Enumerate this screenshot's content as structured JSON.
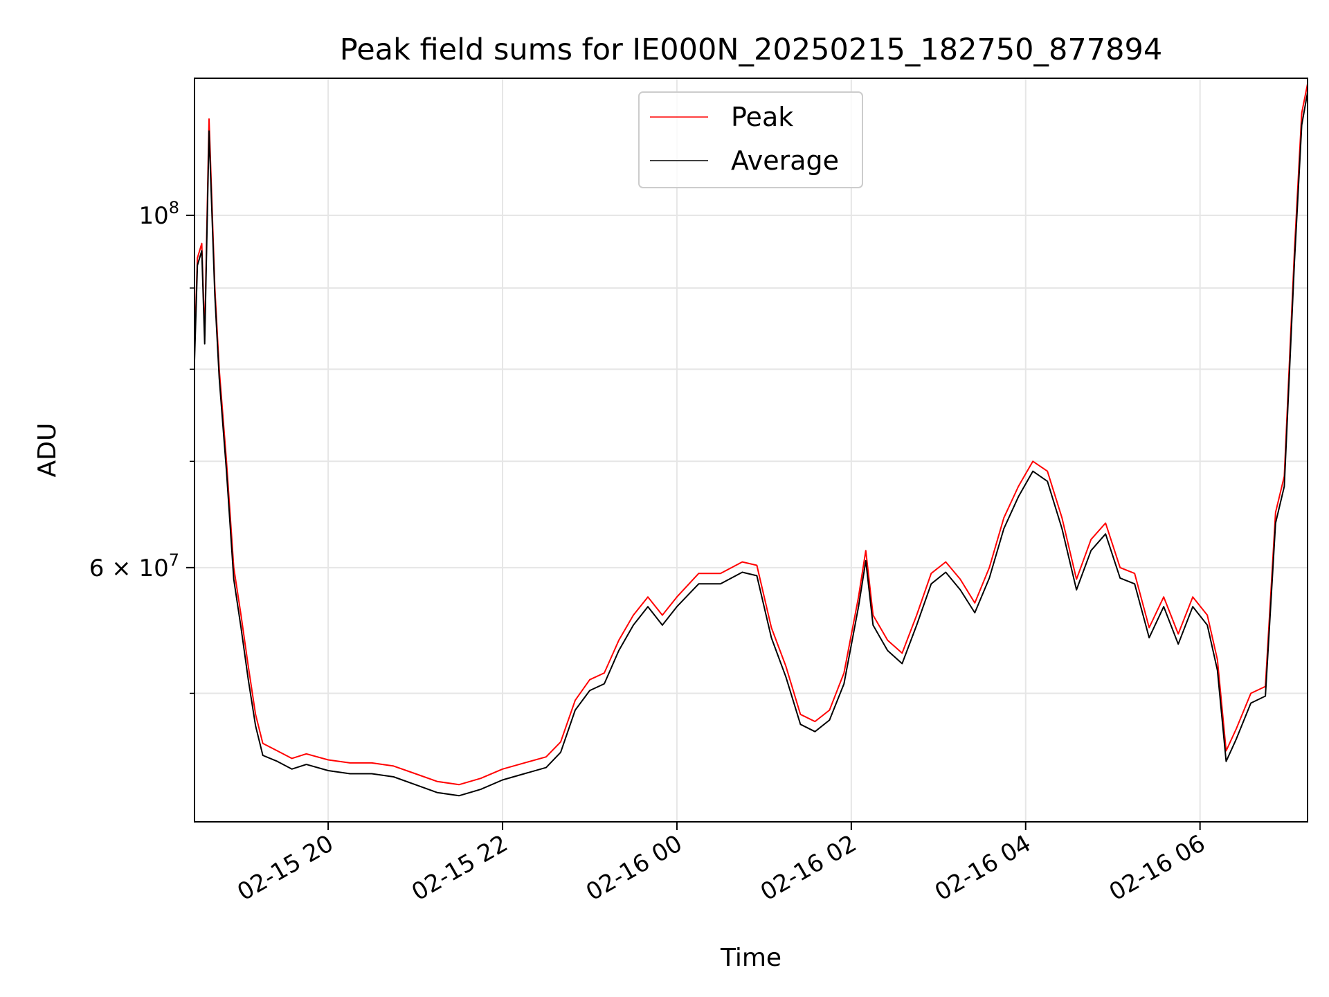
{
  "chart_data": {
    "type": "line",
    "title": "Peak field sums for IE000N_20250215_182750_877894",
    "xlabel": "Time",
    "ylabel": "ADU",
    "yscale": "log",
    "grid": true,
    "legend_position": "upper-center",
    "xlim": [
      "2025-02-15 18:28",
      "2025-02-16 07:14"
    ],
    "ylim": [
      41500000,
      122000000
    ],
    "x_ticks": [
      {
        "t": "2025-02-15 20:00",
        "label": "02-15 20"
      },
      {
        "t": "2025-02-15 22:00",
        "label": "02-15 22"
      },
      {
        "t": "2025-02-16 00:00",
        "label": "02-16 00"
      },
      {
        "t": "2025-02-16 02:00",
        "label": "02-16 02"
      },
      {
        "t": "2025-02-16 04:00",
        "label": "02-16 04"
      },
      {
        "t": "2025-02-16 06:00",
        "label": "02-16 06"
      }
    ],
    "y_major_ticks": [
      {
        "value": 100000000,
        "label_base": "10",
        "label_exp": "8"
      },
      {
        "value": 60000000,
        "label_base": "6 × 10",
        "label_exp": "7"
      }
    ],
    "y_minor_ticks": [
      50000000,
      70000000,
      80000000,
      90000000
    ],
    "series": [
      {
        "name": "Peak",
        "color": "#ff0000",
        "points": [
          [
            "2025-02-15 18:28",
            82000000
          ],
          [
            "2025-02-15 18:30",
            94000000
          ],
          [
            "2025-02-15 18:33",
            96000000
          ],
          [
            "2025-02-15 18:35",
            84000000
          ],
          [
            "2025-02-15 18:38",
            115000000
          ],
          [
            "2025-02-15 18:42",
            90000000
          ],
          [
            "2025-02-15 18:45",
            80000000
          ],
          [
            "2025-02-15 18:50",
            70000000
          ],
          [
            "2025-02-15 18:55",
            60000000
          ],
          [
            "2025-02-15 19:00",
            56000000
          ],
          [
            "2025-02-15 19:05",
            52000000
          ],
          [
            "2025-02-15 19:10",
            48500000
          ],
          [
            "2025-02-15 19:15",
            46500000
          ],
          [
            "2025-02-15 19:25",
            46000000
          ],
          [
            "2025-02-15 19:35",
            45500000
          ],
          [
            "2025-02-15 19:45",
            45800000
          ],
          [
            "2025-02-15 20:00",
            45400000
          ],
          [
            "2025-02-15 20:15",
            45200000
          ],
          [
            "2025-02-15 20:30",
            45200000
          ],
          [
            "2025-02-15 20:45",
            45000000
          ],
          [
            "2025-02-15 21:00",
            44500000
          ],
          [
            "2025-02-15 21:15",
            44000000
          ],
          [
            "2025-02-15 21:30",
            43800000
          ],
          [
            "2025-02-15 21:45",
            44200000
          ],
          [
            "2025-02-15 22:00",
            44800000
          ],
          [
            "2025-02-15 22:15",
            45200000
          ],
          [
            "2025-02-15 22:30",
            45600000
          ],
          [
            "2025-02-15 22:40",
            46600000
          ],
          [
            "2025-02-15 22:50",
            49500000
          ],
          [
            "2025-02-15 23:00",
            51000000
          ],
          [
            "2025-02-15 23:10",
            51500000
          ],
          [
            "2025-02-15 23:20",
            54000000
          ],
          [
            "2025-02-15 23:30",
            56000000
          ],
          [
            "2025-02-15 23:40",
            57500000
          ],
          [
            "2025-02-15 23:50",
            56000000
          ],
          [
            "2025-02-16 00:00",
            57500000
          ],
          [
            "2025-02-16 00:15",
            59500000
          ],
          [
            "2025-02-16 00:30",
            59500000
          ],
          [
            "2025-02-16 00:45",
            60500000
          ],
          [
            "2025-02-16 00:55",
            60200000
          ],
          [
            "2025-02-16 01:05",
            55000000
          ],
          [
            "2025-02-16 01:15",
            52000000
          ],
          [
            "2025-02-16 01:25",
            48500000
          ],
          [
            "2025-02-16 01:35",
            48000000
          ],
          [
            "2025-02-16 01:45",
            48800000
          ],
          [
            "2025-02-16 01:55",
            51500000
          ],
          [
            "2025-02-16 02:05",
            57500000
          ],
          [
            "2025-02-16 02:10",
            61500000
          ],
          [
            "2025-02-16 02:15",
            56000000
          ],
          [
            "2025-02-16 02:25",
            54000000
          ],
          [
            "2025-02-16 02:35",
            53000000
          ],
          [
            "2025-02-16 02:45",
            56000000
          ],
          [
            "2025-02-16 02:55",
            59500000
          ],
          [
            "2025-02-16 03:05",
            60500000
          ],
          [
            "2025-02-16 03:15",
            59000000
          ],
          [
            "2025-02-16 03:25",
            57000000
          ],
          [
            "2025-02-16 03:35",
            60000000
          ],
          [
            "2025-02-16 03:45",
            64500000
          ],
          [
            "2025-02-16 03:55",
            67500000
          ],
          [
            "2025-02-16 04:05",
            70000000
          ],
          [
            "2025-02-16 04:15",
            69000000
          ],
          [
            "2025-02-16 04:25",
            64500000
          ],
          [
            "2025-02-16 04:35",
            59000000
          ],
          [
            "2025-02-16 04:45",
            62500000
          ],
          [
            "2025-02-16 04:55",
            64000000
          ],
          [
            "2025-02-16 05:05",
            60000000
          ],
          [
            "2025-02-16 05:15",
            59500000
          ],
          [
            "2025-02-16 05:25",
            55000000
          ],
          [
            "2025-02-16 05:35",
            57500000
          ],
          [
            "2025-02-16 05:45",
            54500000
          ],
          [
            "2025-02-16 05:55",
            57500000
          ],
          [
            "2025-02-16 06:05",
            56000000
          ],
          [
            "2025-02-16 06:12",
            52500000
          ],
          [
            "2025-02-16 06:18",
            46000000
          ],
          [
            "2025-02-16 06:25",
            47500000
          ],
          [
            "2025-02-16 06:35",
            50000000
          ],
          [
            "2025-02-16 06:45",
            50500000
          ],
          [
            "2025-02-16 06:52",
            65000000
          ],
          [
            "2025-02-16 06:58",
            68500000
          ],
          [
            "2025-02-16 07:05",
            95000000
          ],
          [
            "2025-02-16 07:10",
            116000000
          ],
          [
            "2025-02-16 07:14",
            121000000
          ]
        ]
      },
      {
        "name": "Average",
        "color": "#000000",
        "points": [
          [
            "2025-02-15 18:28",
            81000000
          ],
          [
            "2025-02-15 18:30",
            93000000
          ],
          [
            "2025-02-15 18:33",
            95000000
          ],
          [
            "2025-02-15 18:35",
            83000000
          ],
          [
            "2025-02-15 18:38",
            113000000
          ],
          [
            "2025-02-15 18:42",
            89000000
          ],
          [
            "2025-02-15 18:45",
            79000000
          ],
          [
            "2025-02-15 18:50",
            69000000
          ],
          [
            "2025-02-15 18:55",
            59000000
          ],
          [
            "2025-02-15 19:00",
            55000000
          ],
          [
            "2025-02-15 19:05",
            51000000
          ],
          [
            "2025-02-15 19:10",
            47700000
          ],
          [
            "2025-02-15 19:15",
            45700000
          ],
          [
            "2025-02-15 19:25",
            45300000
          ],
          [
            "2025-02-15 19:35",
            44800000
          ],
          [
            "2025-02-15 19:45",
            45100000
          ],
          [
            "2025-02-15 20:00",
            44700000
          ],
          [
            "2025-02-15 20:15",
            44500000
          ],
          [
            "2025-02-15 20:30",
            44500000
          ],
          [
            "2025-02-15 20:45",
            44300000
          ],
          [
            "2025-02-15 21:00",
            43800000
          ],
          [
            "2025-02-15 21:15",
            43300000
          ],
          [
            "2025-02-15 21:30",
            43100000
          ],
          [
            "2025-02-15 21:45",
            43500000
          ],
          [
            "2025-02-15 22:00",
            44100000
          ],
          [
            "2025-02-15 22:15",
            44500000
          ],
          [
            "2025-02-15 22:30",
            44900000
          ],
          [
            "2025-02-15 22:40",
            45900000
          ],
          [
            "2025-02-15 22:50",
            48800000
          ],
          [
            "2025-02-15 23:00",
            50200000
          ],
          [
            "2025-02-15 23:10",
            50700000
          ],
          [
            "2025-02-15 23:20",
            53200000
          ],
          [
            "2025-02-15 23:30",
            55200000
          ],
          [
            "2025-02-15 23:40",
            56700000
          ],
          [
            "2025-02-15 23:50",
            55200000
          ],
          [
            "2025-02-16 00:00",
            56700000
          ],
          [
            "2025-02-16 00:15",
            58600000
          ],
          [
            "2025-02-16 00:30",
            58600000
          ],
          [
            "2025-02-16 00:45",
            59600000
          ],
          [
            "2025-02-16 00:55",
            59300000
          ],
          [
            "2025-02-16 01:05",
            54200000
          ],
          [
            "2025-02-16 01:15",
            51200000
          ],
          [
            "2025-02-16 01:25",
            47800000
          ],
          [
            "2025-02-16 01:35",
            47300000
          ],
          [
            "2025-02-16 01:45",
            48100000
          ],
          [
            "2025-02-16 01:55",
            50700000
          ],
          [
            "2025-02-16 02:05",
            56700000
          ],
          [
            "2025-02-16 02:10",
            60600000
          ],
          [
            "2025-02-16 02:15",
            55200000
          ],
          [
            "2025-02-16 02:25",
            53200000
          ],
          [
            "2025-02-16 02:35",
            52200000
          ],
          [
            "2025-02-16 02:45",
            55200000
          ],
          [
            "2025-02-16 02:55",
            58600000
          ],
          [
            "2025-02-16 03:05",
            59600000
          ],
          [
            "2025-02-16 03:15",
            58100000
          ],
          [
            "2025-02-16 03:25",
            56200000
          ],
          [
            "2025-02-16 03:35",
            59100000
          ],
          [
            "2025-02-16 03:45",
            63500000
          ],
          [
            "2025-02-16 03:55",
            66500000
          ],
          [
            "2025-02-16 04:05",
            69000000
          ],
          [
            "2025-02-16 04:15",
            68000000
          ],
          [
            "2025-02-16 04:25",
            63500000
          ],
          [
            "2025-02-16 04:35",
            58100000
          ],
          [
            "2025-02-16 04:45",
            61500000
          ],
          [
            "2025-02-16 04:55",
            63000000
          ],
          [
            "2025-02-16 05:05",
            59100000
          ],
          [
            "2025-02-16 05:15",
            58600000
          ],
          [
            "2025-02-16 05:25",
            54200000
          ],
          [
            "2025-02-16 05:35",
            56700000
          ],
          [
            "2025-02-16 05:45",
            53700000
          ],
          [
            "2025-02-16 05:55",
            56700000
          ],
          [
            "2025-02-16 06:05",
            55200000
          ],
          [
            "2025-02-16 06:12",
            51700000
          ],
          [
            "2025-02-16 06:18",
            45300000
          ],
          [
            "2025-02-16 06:25",
            46800000
          ],
          [
            "2025-02-16 06:35",
            49300000
          ],
          [
            "2025-02-16 06:45",
            49800000
          ],
          [
            "2025-02-16 06:52",
            64000000
          ],
          [
            "2025-02-16 06:58",
            67500000
          ],
          [
            "2025-02-16 07:05",
            93500000
          ],
          [
            "2025-02-16 07:10",
            114000000
          ],
          [
            "2025-02-16 07:14",
            119500000
          ]
        ]
      }
    ]
  }
}
